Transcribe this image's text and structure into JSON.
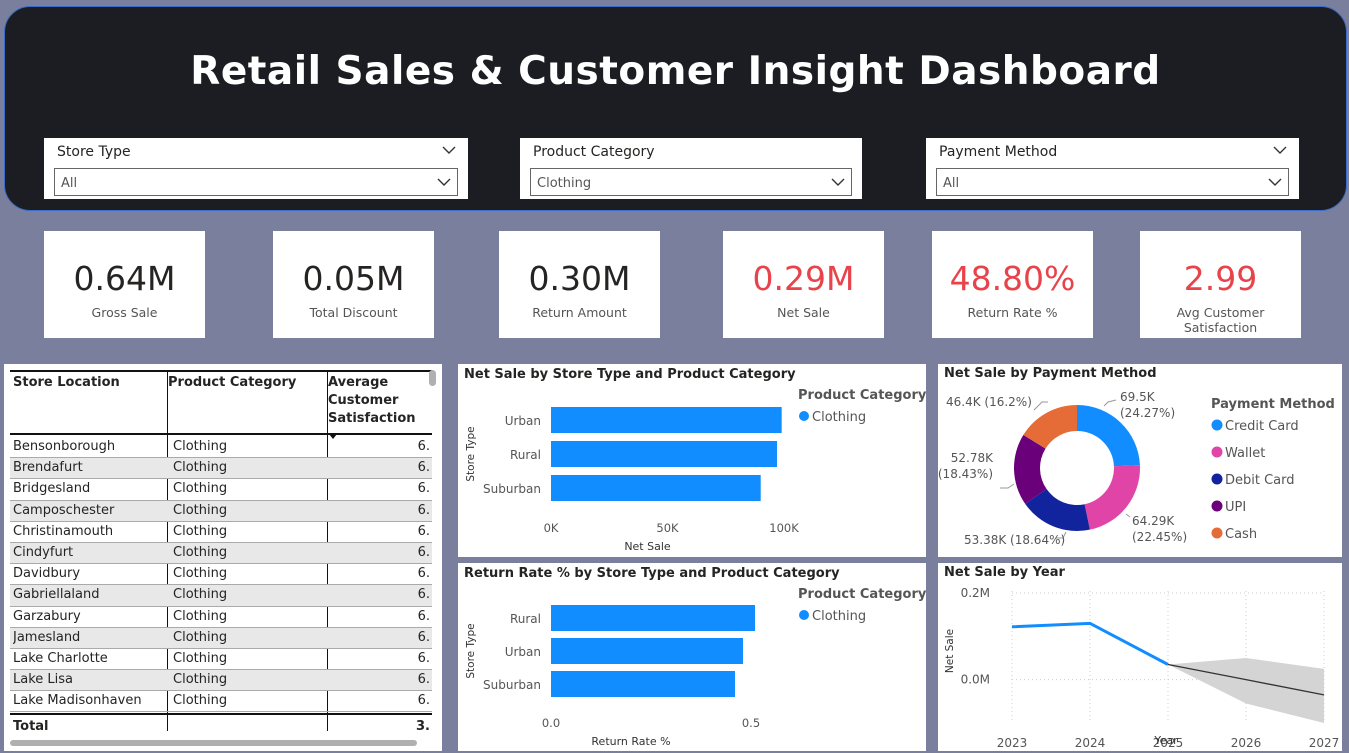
{
  "header": {
    "title": "Retail Sales & Customer Insight Dashboard"
  },
  "slicers": [
    {
      "label": "Store Type",
      "value": "All"
    },
    {
      "label": "Product Category",
      "value": "Clothing"
    },
    {
      "label": "Payment Method",
      "value": "All"
    }
  ],
  "cards": [
    {
      "value": "0.64M",
      "label": "Gross Sale"
    },
    {
      "value": "0.05M",
      "label": "Total Discount"
    },
    {
      "value": "0.30M",
      "label": "Return Amount"
    },
    {
      "value": "0.29M",
      "label": "Net Sale"
    },
    {
      "value": "48.80%",
      "label": "Return Rate %"
    },
    {
      "value": "2.99",
      "label": "Avg Customer Satisfaction"
    }
  ],
  "colors": {
    "accent": "#118dff",
    "red_kpi": "#e8434a"
  },
  "table": {
    "col1": "Store Location",
    "col2": "Product Category",
    "col3_l1": "Average",
    "col3_l2": "Customer",
    "col3_l3": "Satisfaction",
    "rows": [
      {
        "loc": "Bensonborough",
        "cat": "Clothing",
        "val": "6."
      },
      {
        "loc": "Brendafurt",
        "cat": "Clothing",
        "val": "6."
      },
      {
        "loc": "Bridgesland",
        "cat": "Clothing",
        "val": "6."
      },
      {
        "loc": "Camposchester",
        "cat": "Clothing",
        "val": "6."
      },
      {
        "loc": "Christinamouth",
        "cat": "Clothing",
        "val": "6."
      },
      {
        "loc": "Cindyfurt",
        "cat": "Clothing",
        "val": "6."
      },
      {
        "loc": "Davidbury",
        "cat": "Clothing",
        "val": "6."
      },
      {
        "loc": "Gabriellaland",
        "cat": "Clothing",
        "val": "6."
      },
      {
        "loc": "Garzabury",
        "cat": "Clothing",
        "val": "6."
      },
      {
        "loc": "Jamesland",
        "cat": "Clothing",
        "val": "6."
      },
      {
        "loc": "Lake Charlotte",
        "cat": "Clothing",
        "val": "6."
      },
      {
        "loc": "Lake Lisa",
        "cat": "Clothing",
        "val": "6."
      },
      {
        "loc": "Lake Madisonhaven",
        "cat": "Clothing",
        "val": "6."
      }
    ],
    "total_label": "Total",
    "total_value": "3."
  },
  "chart_data": [
    {
      "type": "bar",
      "title": "Net Sale by Store Type and Product Category",
      "categories": [
        "Urban",
        "Rural",
        "Suburban"
      ],
      "series": [
        {
          "name": "Clothing",
          "values": [
            99000,
            97000,
            90000
          ]
        }
      ],
      "xlabel": "Net Sale",
      "ylabel": "Store Type",
      "xlim": [
        0,
        100000
      ],
      "ticks": [
        "0K",
        "50K",
        "100K"
      ],
      "legend_title": "Product Category",
      "legend": "top-right"
    },
    {
      "type": "bar",
      "title": "Return Rate % by Store Type and Product Category",
      "categories": [
        "Rural",
        "Urban",
        "Suburban"
      ],
      "series": [
        {
          "name": "Clothing",
          "values": [
            0.51,
            0.48,
            0.46
          ]
        }
      ],
      "xlabel": "Return Rate %",
      "ylabel": "Store Type",
      "xlim": [
        0,
        0.5
      ],
      "ticks": [
        "0.0",
        "0.5"
      ],
      "legend_title": "Product Category",
      "legend": "top-right"
    },
    {
      "type": "pie",
      "title": "Net Sale by Payment Method",
      "legend_title": "Payment Method",
      "slices": [
        {
          "name": "Credit Card",
          "value": 69500,
          "label": "69.5K",
          "pct": "(24.27%)",
          "color": "#118dff"
        },
        {
          "name": "Wallet",
          "value": 64290,
          "label": "64.29K",
          "pct": "(22.45%)",
          "color": "#e044a7"
        },
        {
          "name": "Debit Card",
          "value": 53380,
          "label": "53.38K (18.64%)",
          "pct": "",
          "color": "#12239e"
        },
        {
          "name": "UPI",
          "value": 52780,
          "label": "52.78K",
          "pct": "(18.43%)",
          "color": "#6b007b"
        },
        {
          "name": "Cash",
          "value": 46400,
          "label": "46.4K (16.2%)",
          "pct": "",
          "color": "#e66c37"
        }
      ]
    },
    {
      "type": "line",
      "title": "Net Sale by Year",
      "x": [
        2023,
        2024,
        2025,
        2026,
        2027
      ],
      "actual": [
        0.122,
        0.13,
        0.035,
        null,
        null
      ],
      "forecast": [
        null,
        null,
        0.035,
        0.0,
        -0.035
      ],
      "forecast_upper": [
        null,
        null,
        0.035,
        0.05,
        0.025
      ],
      "forecast_lower": [
        null,
        null,
        0.035,
        -0.055,
        -0.1
      ],
      "xlabel": "Year",
      "ylabel": "Net Sale",
      "ylim": [
        -0.1,
        0.2
      ],
      "yticks": [
        {
          "v": 0.2,
          "t": "0.2M"
        },
        {
          "v": 0.0,
          "t": "0.0M"
        }
      ]
    }
  ]
}
